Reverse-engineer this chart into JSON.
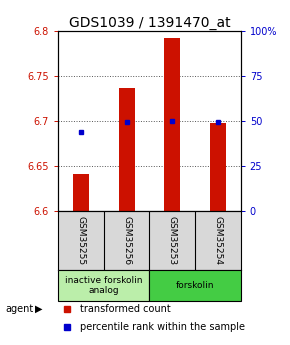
{
  "title": "GDS1039 / 1391470_at",
  "samples": [
    "GSM35255",
    "GSM35256",
    "GSM35253",
    "GSM35254"
  ],
  "bar_values": [
    6.641,
    6.737,
    6.792,
    6.698
  ],
  "bar_bottom": 6.6,
  "blue_marker_values": [
    6.688,
    6.699,
    6.7,
    6.699
  ],
  "ylim": [
    6.6,
    6.8
  ],
  "yticks_left": [
    6.6,
    6.65,
    6.7,
    6.75,
    6.8
  ],
  "yticks_right": [
    0,
    25,
    50,
    75,
    100
  ],
  "ytick_right_labels": [
    "0",
    "25",
    "50",
    "75",
    "100%"
  ],
  "bar_color": "#cc1100",
  "blue_color": "#0000cc",
  "grid_color": "#555555",
  "agent_groups": [
    {
      "label": "inactive forskolin\nanalog",
      "span": [
        0,
        2
      ],
      "color": "#bbeeaa"
    },
    {
      "label": "forskolin",
      "span": [
        2,
        4
      ],
      "color": "#44cc44"
    }
  ],
  "legend_items": [
    {
      "color": "#cc1100",
      "label": "transformed count"
    },
    {
      "color": "#0000cc",
      "label": "percentile rank within the sample"
    }
  ],
  "agent_label": "agent",
  "bar_width": 0.35,
  "title_fontsize": 10,
  "tick_fontsize": 7,
  "label_fontsize": 7,
  "sample_label_fontsize": 6.5,
  "agent_fontsize": 6.5
}
